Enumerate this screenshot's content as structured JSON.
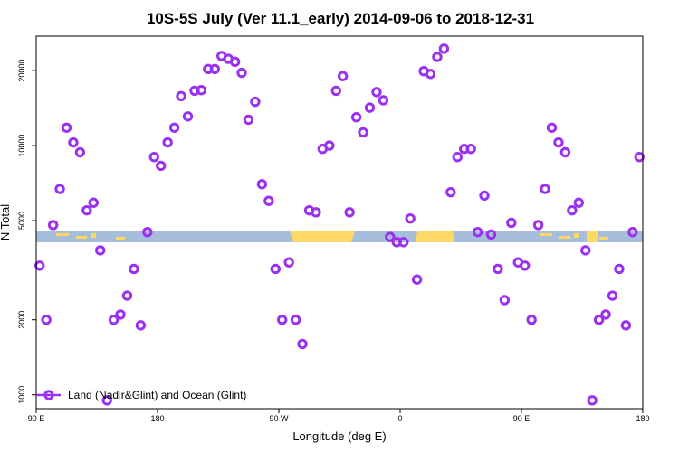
{
  "chart_data": {
    "type": "scatter",
    "title": "10S-5S July (Ver 11.1_early)   2014-09-06 to 2018-12-31",
    "xlabel": "Longitude (deg E)",
    "ylabel": "N Total",
    "y_scale": "log",
    "xlim": [
      90,
      540
    ],
    "ylim": [
      880,
      27500
    ],
    "x_ticks": [
      {
        "value": 90,
        "label": "90 E"
      },
      {
        "value": 180,
        "label": "180"
      },
      {
        "value": 270,
        "label": "90 W"
      },
      {
        "value": 360,
        "label": "0"
      },
      {
        "value": 450,
        "label": "90 E"
      },
      {
        "value": 540,
        "label": "180"
      }
    ],
    "y_ticks": [
      {
        "value": 1000,
        "label": "1000"
      },
      {
        "value": 2000,
        "label": "2000"
      },
      {
        "value": 5000,
        "label": "5000"
      },
      {
        "value": 10000,
        "label": "10000"
      },
      {
        "value": 20000,
        "label": "20000"
      }
    ],
    "legend": {
      "position": "bottom-left",
      "entries": [
        "Land (Nadir&Glint) and Ocean (Glint)"
      ]
    },
    "colors": {
      "marker": "#9b30f0",
      "ocean_band": "#a6bddb",
      "land_band": "#ffd966"
    },
    "series": [
      {
        "name": "Land (Nadir&Glint) and Ocean (Glint)",
        "x": [
          92.5,
          97.5,
          102.5,
          107.5,
          112.5,
          117.5,
          122.5,
          127.5,
          132.5,
          137.5,
          142.5,
          147.5,
          152.5,
          157.5,
          162.5,
          167.5,
          172.5,
          177.5,
          182.5,
          187.5,
          192.5,
          197.5,
          202.5,
          207.5,
          212.5,
          217.5,
          222.5,
          227.5,
          232.5,
          237.5,
          242.5,
          247.5,
          252.5,
          257.5,
          262.5,
          267.5,
          272.5,
          277.5,
          282.5,
          287.5,
          292.5,
          297.5,
          302.5,
          307.5,
          312.5,
          317.5,
          322.5,
          327.5,
          332.5,
          337.5,
          342.5,
          347.5,
          352.5,
          357.5,
          362.5,
          367.5,
          372.5,
          377.5,
          382.5,
          387.5,
          392.5,
          397.5,
          402.5,
          407.5,
          412.5,
          417.5,
          422.5,
          427.5,
          432.5,
          437.5,
          442.5,
          447.5,
          452.5,
          457.5,
          462.5,
          467.5,
          472.5,
          477.5,
          482.5,
          487.5,
          492.5,
          497.5,
          502.5,
          507.5,
          512.5,
          517.5,
          522.5,
          527.5,
          532.5,
          537.5
        ],
        "y": [
          3300,
          2000,
          4800,
          6700,
          11800,
          10300,
          9400,
          5500,
          5900,
          3800,
          950,
          2000,
          2100,
          2500,
          3200,
          1900,
          4500,
          9000,
          8300,
          10300,
          11800,
          15800,
          13100,
          16600,
          16700,
          20300,
          20300,
          22900,
          22300,
          21700,
          19600,
          12700,
          15000,
          7000,
          6000,
          3200,
          2000,
          3400,
          2000,
          1600,
          5500,
          5400,
          9700,
          10000,
          16600,
          19000,
          5400,
          13000,
          11300,
          14200,
          16400,
          15200,
          4300,
          4100,
          4100,
          5100,
          2900,
          19900,
          19400,
          22700,
          24500,
          6500,
          9000,
          9700,
          9700,
          4500,
          6300,
          4400,
          3200,
          2400,
          4900,
          3400,
          3300,
          2000,
          4800,
          6700,
          11800,
          10300,
          9400,
          5500,
          5900,
          3800,
          950,
          2000,
          2100,
          2500,
          3200,
          1900,
          4500,
          9000
        ]
      }
    ]
  }
}
